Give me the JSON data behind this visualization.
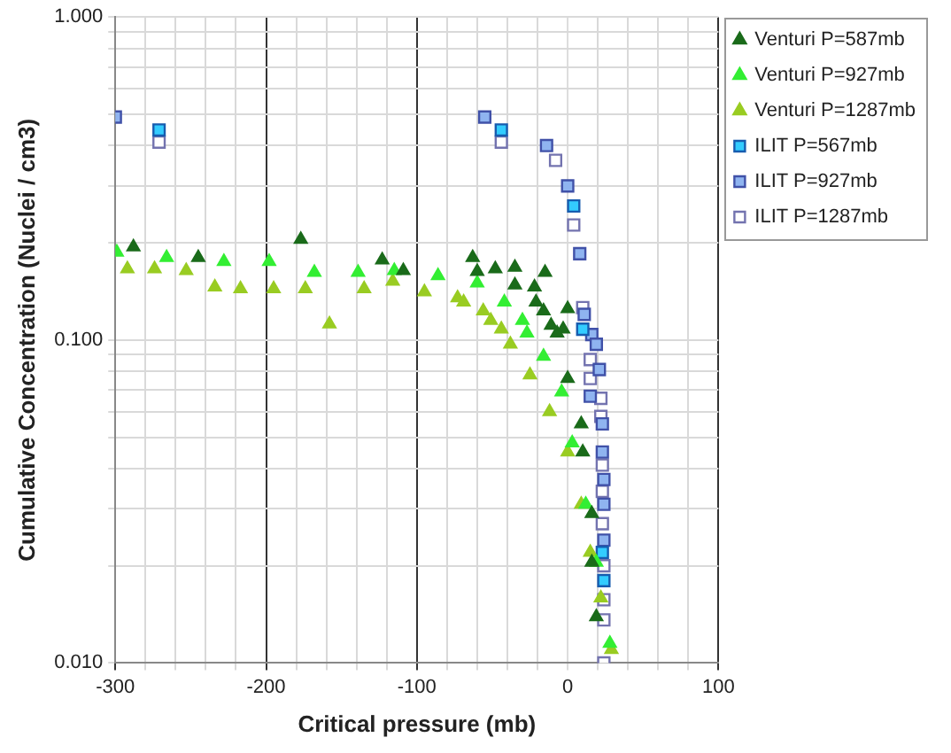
{
  "chart_data": {
    "type": "scatter",
    "xlabel": "Critical pressure (mb)",
    "ylabel": "Cumulative Concentration (Nuclei / cm3)",
    "log": "y",
    "grid": true,
    "legend": "right",
    "xlim": [
      -300,
      100
    ],
    "xticks": [
      -300,
      {
        "value": -280,
        "label": null
      },
      {
        "value": -260,
        "label": null
      },
      {
        "value": -240,
        "label": null
      },
      {
        "value": -220,
        "label": null
      },
      -200,
      {
        "value": -180,
        "label": null
      },
      {
        "value": -160,
        "label": null
      },
      {
        "value": -140,
        "label": null
      },
      {
        "value": -120,
        "label": null
      },
      -100,
      {
        "value": -80,
        "label": null
      },
      {
        "value": -60,
        "label": null
      },
      {
        "value": -40,
        "label": null
      },
      {
        "value": -20,
        "label": null
      },
      0,
      {
        "value": 20,
        "label": null
      },
      {
        "value": 40,
        "label": null
      },
      {
        "value": 60,
        "label": null
      },
      {
        "value": 80,
        "label": null
      },
      100
    ],
    "ylim": [
      0.01,
      1
    ],
    "yticks": [
      {
        "value": 0.01,
        "label": "0.010"
      },
      {
        "value": 0.02,
        "label": null
      },
      {
        "value": 0.03,
        "label": null
      },
      {
        "value": 0.04,
        "label": null
      },
      {
        "value": 0.05,
        "label": null
      },
      {
        "value": 0.06,
        "label": null
      },
      {
        "value": 0.07,
        "label": null
      },
      {
        "value": 0.08,
        "label": null
      },
      {
        "value": 0.09,
        "label": null
      },
      {
        "value": 0.1,
        "label": "0.100"
      },
      {
        "value": 0.2,
        "label": null
      },
      {
        "value": 0.3,
        "label": null
      },
      {
        "value": 0.4,
        "label": null
      },
      {
        "value": 0.5,
        "label": null
      },
      {
        "value": 0.6,
        "label": null
      },
      {
        "value": 0.7,
        "label": null
      },
      {
        "value": 0.8,
        "label": null
      },
      {
        "value": 0.9,
        "label": null
      },
      {
        "value": 1,
        "label": "1.000"
      }
    ],
    "series": [
      {
        "name": "Venturi P=587mb",
        "color": "#1a6b1a",
        "marker": "triangle",
        "x": [
          -288,
          -245,
          -177,
          -123,
          -109,
          -63,
          -60,
          -48,
          -35,
          -35,
          -22,
          -15,
          -21,
          -16,
          0,
          -11,
          -3,
          -7,
          0,
          9,
          10,
          16,
          16,
          19
        ],
        "values": [
          0.194,
          0.18,
          0.205,
          0.177,
          0.164,
          0.18,
          0.163,
          0.166,
          0.168,
          0.148,
          0.146,
          0.162,
          0.131,
          0.123,
          0.125,
          0.111,
          0.108,
          0.105,
          0.076,
          0.055,
          0.045,
          0.029,
          0.0205,
          0.0139
        ]
      },
      {
        "name": "Venturi P=927mb",
        "color": "#33ee33",
        "marker": "triangle",
        "x": [
          -299,
          -266,
          -228,
          -198,
          -168,
          -139,
          -115,
          -86,
          -60,
          -42,
          -30,
          -27,
          -16,
          -4,
          3,
          12,
          19,
          28
        ],
        "values": [
          0.187,
          0.18,
          0.175,
          0.175,
          0.162,
          0.162,
          0.164,
          0.158,
          0.15,
          0.131,
          0.115,
          0.105,
          0.089,
          0.069,
          0.048,
          0.031,
          0.0205,
          0.0115
        ]
      },
      {
        "name": "Venturi P=1287mb",
        "color": "#99cc22",
        "marker": "triangle",
        "x": [
          -292,
          -274,
          -253,
          -234,
          -217,
          -195,
          -174,
          -158,
          -135,
          -116,
          -95,
          -73,
          -69,
          -56,
          -51,
          -44,
          -38,
          -25,
          -12,
          0,
          9,
          15,
          22,
          29
        ],
        "values": [
          0.166,
          0.166,
          0.164,
          0.146,
          0.144,
          0.144,
          0.144,
          0.112,
          0.144,
          0.152,
          0.141,
          0.135,
          0.131,
          0.123,
          0.115,
          0.108,
          0.097,
          0.078,
          0.06,
          0.045,
          0.031,
          0.022,
          0.0159,
          0.011
        ]
      },
      {
        "name": "ILIT P=567mb",
        "color": "#33ccff",
        "marker": "square",
        "x": [
          -271,
          -44,
          4,
          10,
          23,
          24
        ],
        "values": [
          0.447,
          0.447,
          0.26,
          0.108,
          0.022,
          0.018
        ]
      },
      {
        "name": "ILIT P=927mb",
        "color": "#8fb4f0",
        "marker": "square",
        "x": [
          -300,
          -55,
          -14,
          0,
          8,
          11,
          16,
          19,
          21,
          15,
          23,
          23,
          24,
          24,
          24
        ],
        "values": [
          0.49,
          0.49,
          0.4,
          0.3,
          0.185,
          0.12,
          0.104,
          0.097,
          0.081,
          0.067,
          0.055,
          0.045,
          0.037,
          0.031,
          0.024
        ]
      },
      {
        "name": "ILIT P=1287mb",
        "color": "#ffffff",
        "marker": "square",
        "x": [
          -271,
          -44,
          -8,
          4,
          10,
          15,
          15,
          22,
          22,
          23,
          23,
          23,
          24,
          24,
          24,
          24
        ],
        "values": [
          0.41,
          0.41,
          0.36,
          0.227,
          0.126,
          0.087,
          0.076,
          0.066,
          0.058,
          0.041,
          0.034,
          0.027,
          0.02,
          0.0157,
          0.0136,
          0.01
        ]
      }
    ]
  }
}
